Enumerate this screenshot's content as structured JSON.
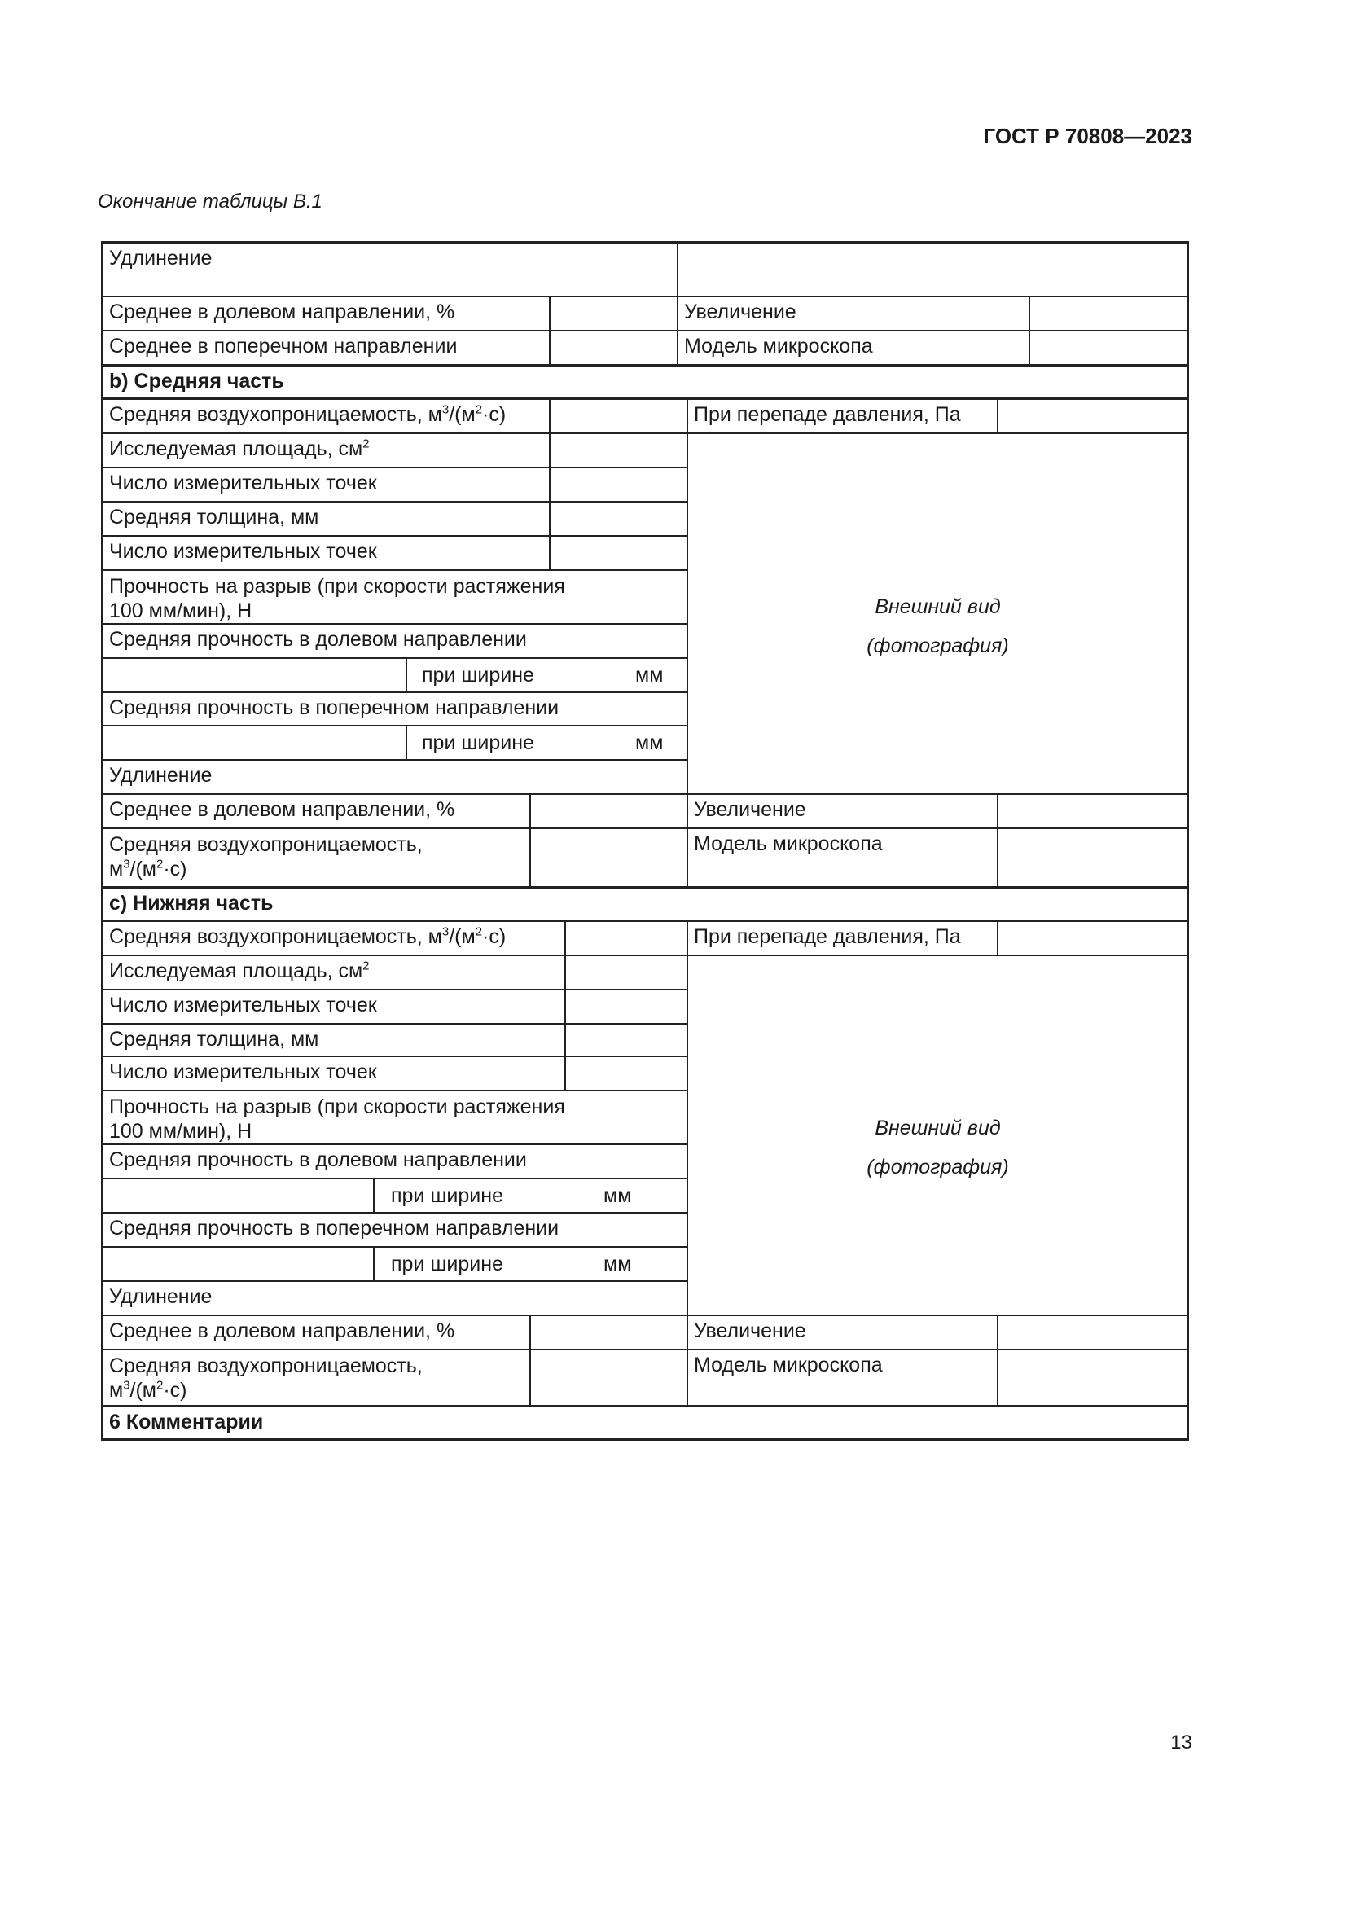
{
  "header": {
    "standard": "ГОСТ Р 70808—2023",
    "caption": "Окончание таблицы В.1",
    "page_number": "13"
  },
  "section_a_tail": {
    "elongation": "Удлинение",
    "avg_machine": "Среднее в долевом направлении, %",
    "avg_cross": "Среднее в поперечном направлении",
    "magnification": "Увеличение",
    "microscope": "Модель микроскопа"
  },
  "section_b": {
    "title": "b) Средняя часть",
    "air_perm": "Средняя воздухопроницаемость, м",
    "pressure": "При перепаде давления, Па",
    "area": "Исследуемая площадь, см",
    "points1": "Число измерительных точек",
    "thickness": "Средняя толщина, мм",
    "points2": "Число измерительных точек",
    "strength_l1": "Прочность на разрыв (при скорости растяжения",
    "strength_l2": "100 мм/мин), Н",
    "strength_machine": "Средняя прочность в долевом направлении",
    "width1": "при ширине",
    "mm1": "мм",
    "strength_cross": "Средняя прочность в поперечном направлении",
    "width2": "при ширине",
    "mm2": "мм",
    "elongation": "Удлинение",
    "avg_machine": "Среднее в долевом направлении, %",
    "air_perm2_l1": "Средняя воздухопроницаемость,",
    "air_perm2_l2": "м",
    "photo_l1": "Внешний вид",
    "photo_l2": "(фотография)",
    "magnification": "Увеличение",
    "microscope": "Модель микроскопа"
  },
  "section_c": {
    "title": "c) Нижняя часть",
    "air_perm": "Средняя воздухопроницаемость, м",
    "pressure": "При перепаде давления, Па",
    "area": "Исследуемая площадь, см",
    "points1": "Число измерительных точек",
    "thickness": "Средняя толщина, мм",
    "points2": "Число измерительных точек",
    "strength_l1": "Прочность на разрыв (при скорости растяжения",
    "strength_l2": "100 мм/мин), Н",
    "strength_machine": "Средняя прочность в долевом направлении",
    "width1": "при ширине",
    "mm1": "мм",
    "strength_cross": "Средняя прочность в поперечном направлении",
    "width2": "при ширине",
    "mm2": "мм",
    "elongation": "Удлинение",
    "avg_machine": "Среднее в долевом направлении, %",
    "air_perm2_l1": "Средняя воздухопроницаемость,",
    "air_perm2_l2": "м",
    "photo_l1": "Внешний вид",
    "photo_l2": "(фотография)",
    "magnification": "Увеличение",
    "microscope": "Модель микроскопа"
  },
  "units": {
    "sup3": "3",
    "sup2": "2",
    "per": "/(м",
    "dot_s": "·с)"
  },
  "comments": "6 Комментарии"
}
